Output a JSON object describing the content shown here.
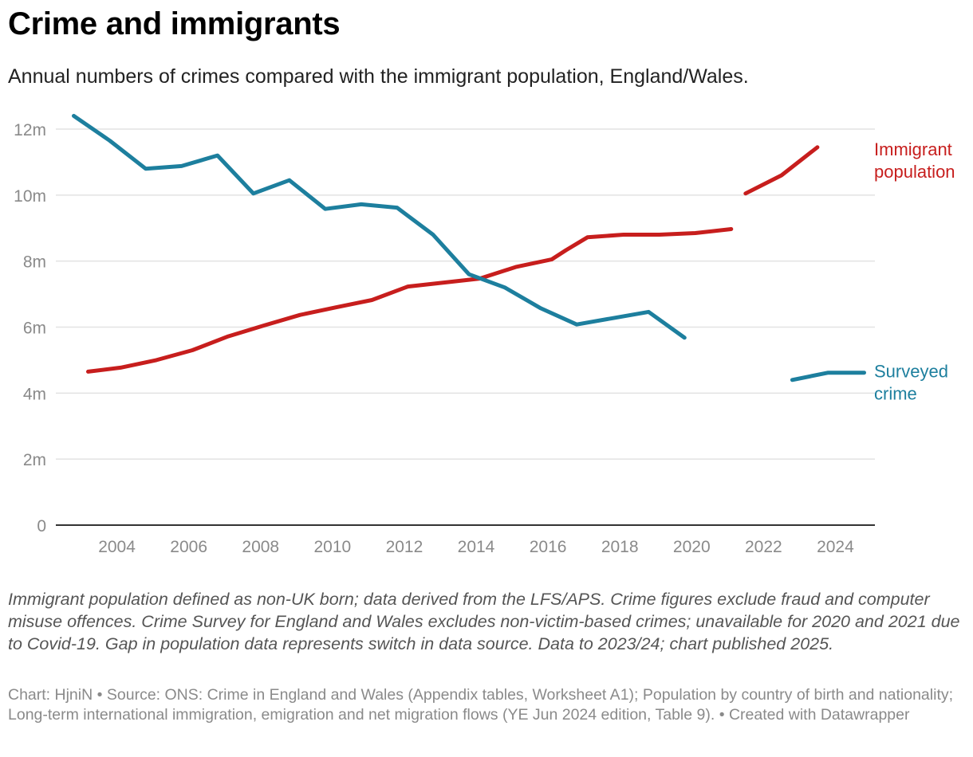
{
  "title": "Crime and immigrants",
  "subtitle": "Annual numbers of crimes compared with the immigrant population, England/Wales.",
  "notes": "Immigrant population defined as non-UK born; data derived from the LFS/APS. Crime figures exclude fraud and computer misuse offences. Crime Survey for England and Wales excludes non-victim-based crimes; unavailable for 2020 and 2021 due to Covid-19. Gap in population data represents switch in data source. Data to 2023/24; chart published 2025.",
  "source": {
    "chart_label": "Chart: HjniN",
    "separator": " • ",
    "source_text": "Source: ONS: Crime in England and Wales (Appendix tables, Worksheet A1); Population by country of birth and nationality; Long-term international immigration, emigration and net migration flows (YE Jun 2024 edition, Table 9).",
    "created_with": "Created with Datawrapper"
  },
  "colors": {
    "immigrant": "#c71e1d",
    "crime": "#1d7f9e",
    "grid": "#e2e2e2",
    "axis_text": "#8a8a8a"
  },
  "chart_data": {
    "type": "line",
    "title": "Crime and immigrants",
    "xlabel": "",
    "ylabel": "",
    "xlim": [
      2002.3,
      2025.1
    ],
    "ylim": [
      0,
      12
    ],
    "y_ticks": [
      0,
      2,
      4,
      6,
      8,
      10,
      12
    ],
    "y_tick_labels": [
      "0",
      "2m",
      "4m",
      "6m",
      "8m",
      "10m",
      "12m"
    ],
    "x_ticks": [
      2004,
      2006,
      2008,
      2010,
      2012,
      2014,
      2016,
      2018,
      2020,
      2022,
      2024
    ],
    "x_tick_labels": [
      "2004",
      "2006",
      "2008",
      "2010",
      "2012",
      "2014",
      "2016",
      "2018",
      "2020",
      "2022",
      "2024"
    ],
    "grid": true,
    "series": [
      {
        "name": "Immigrant population",
        "label_lines": [
          "Immigrant",
          "population"
        ],
        "color": "#c71e1d",
        "segments": [
          [
            [
              2003.2,
              4.65
            ],
            [
              2004.1,
              4.77
            ],
            [
              2005.1,
              5.0
            ],
            [
              2006.1,
              5.3
            ],
            [
              2007.1,
              5.72
            ],
            [
              2008.1,
              6.05
            ],
            [
              2009.1,
              6.37
            ],
            [
              2010.1,
              6.6
            ],
            [
              2011.1,
              6.82
            ],
            [
              2012.1,
              7.23
            ],
            [
              2013.1,
              7.35
            ],
            [
              2014.1,
              7.47
            ],
            [
              2015.1,
              7.82
            ],
            [
              2016.1,
              8.05
            ],
            [
              2016.5,
              8.33
            ],
            [
              2017.1,
              8.72
            ],
            [
              2018.1,
              8.8
            ],
            [
              2019.1,
              8.8
            ],
            [
              2020.1,
              8.85
            ],
            [
              2021.1,
              8.97
            ]
          ],
          [
            [
              2021.5,
              10.05
            ],
            [
              2022.5,
              10.6
            ],
            [
              2023.5,
              11.45
            ]
          ]
        ]
      },
      {
        "name": "Surveyed crime",
        "label_lines": [
          "Surveyed",
          "crime"
        ],
        "color": "#1d7f9e",
        "segments": [
          [
            [
              2002.8,
              12.4
            ],
            [
              2003.8,
              11.65
            ],
            [
              2004.8,
              10.8
            ],
            [
              2005.8,
              10.88
            ],
            [
              2006.8,
              11.2
            ],
            [
              2007.8,
              10.05
            ],
            [
              2008.8,
              10.45
            ],
            [
              2009.8,
              9.58
            ],
            [
              2010.8,
              9.72
            ],
            [
              2011.8,
              9.62
            ],
            [
              2012.8,
              8.8
            ],
            [
              2013.8,
              7.6
            ],
            [
              2014.8,
              7.2
            ],
            [
              2015.8,
              6.57
            ],
            [
              2016.8,
              6.08
            ],
            [
              2017.8,
              6.27
            ],
            [
              2018.8,
              6.46
            ],
            [
              2019.8,
              5.68
            ]
          ],
          [
            [
              2022.8,
              4.4
            ],
            [
              2023.8,
              4.62
            ],
            [
              2024.8,
              4.62
            ]
          ]
        ]
      }
    ]
  }
}
